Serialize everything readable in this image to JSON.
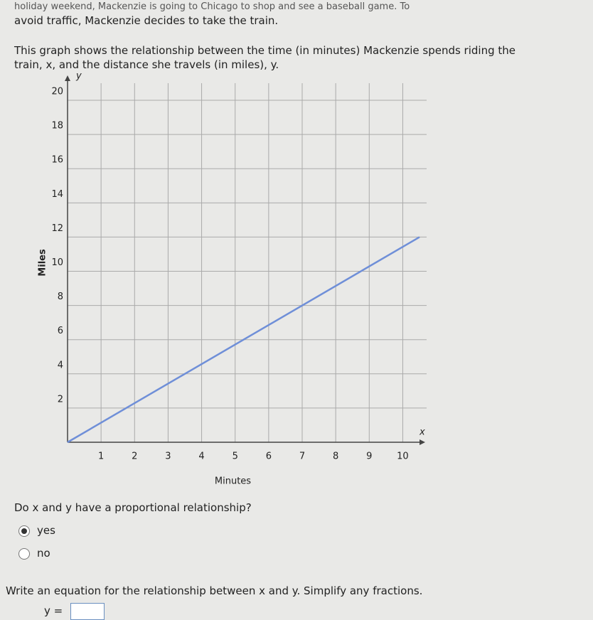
{
  "intro": [
    "holiday weekend, Mackenzie is going to Chicago to shop and see a baseball game. To",
    "avoid traffic, Mackenzie decides to take the train."
  ],
  "description": [
    "This graph shows the relationship between the time (in minutes) Mackenzie spends riding the",
    "train, x, and the distance she travels (in miles), y."
  ],
  "chart_data": {
    "type": "line",
    "x_label": "Minutes",
    "y_label": "Miles",
    "x_axis_name": "x",
    "y_axis_name": "y",
    "x": [
      0,
      10.5
    ],
    "values": [
      0,
      12
    ],
    "color": "#6f8fd8",
    "xlim": [
      0,
      10.5
    ],
    "ylim": [
      0,
      21
    ],
    "xticks": [
      1,
      2,
      3,
      4,
      5,
      6,
      7,
      8,
      9,
      10
    ],
    "yticks": [
      2,
      4,
      6,
      8,
      10,
      12,
      14,
      16,
      18,
      20
    ],
    "grid": true
  },
  "question1": {
    "prompt": "Do x and y have a proportional relationship?",
    "options": [
      "yes",
      "no"
    ]
  },
  "question2": {
    "prompt": "Write an equation for the relationship between x and y. Simplify any fractions.",
    "equation_label": "y ="
  }
}
